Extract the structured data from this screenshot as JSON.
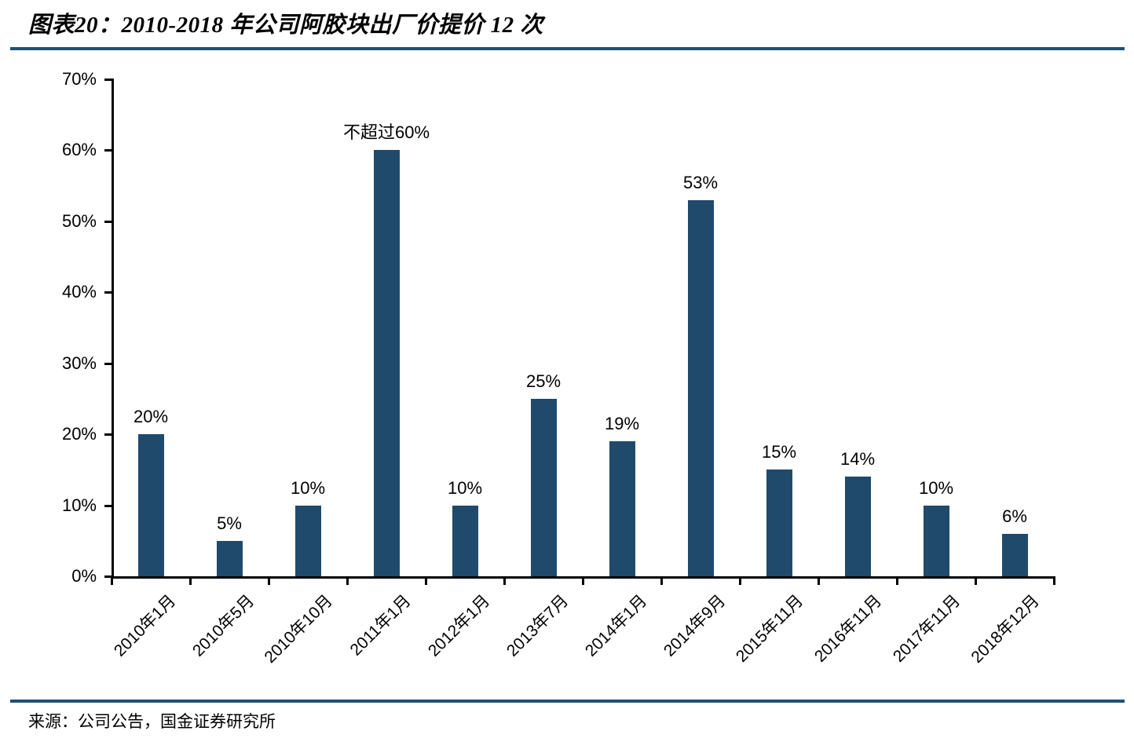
{
  "page": {
    "title": "图表20：2010-2018 年公司阿胶块出厂价提价 12 次",
    "source": "来源：公司公告，国金证券研究所"
  },
  "colors": {
    "bar": "#204A6C",
    "rule": "#1E5073",
    "axis": "#000000",
    "label_text": "#000000"
  },
  "chart_data": {
    "type": "bar",
    "title": "图表20：2010-2018 年公司阿胶块出厂价提价 12 次",
    "categories": [
      "2010年1月",
      "2010年5月",
      "2010年10月",
      "2011年1月",
      "2012年1月",
      "2013年7月",
      "2014年1月",
      "2014年9月",
      "2015年11月",
      "2016年11月",
      "2017年11月",
      "2018年12月"
    ],
    "values": [
      20,
      5,
      10,
      60,
      10,
      25,
      19,
      53,
      15,
      14,
      10,
      6
    ],
    "bar_labels": [
      "20%",
      "5%",
      "10%",
      "不超过60%",
      "10%",
      "25%",
      "19%",
      "53%",
      "15%",
      "14%",
      "10%",
      "6%"
    ],
    "xlabel": "",
    "ylabel": "",
    "ylim": [
      0,
      70
    ],
    "yticks": [
      0,
      10,
      20,
      30,
      40,
      50,
      60,
      70
    ],
    "ytick_labels": [
      "0%",
      "10%",
      "20%",
      "30%",
      "40%",
      "50%",
      "60%",
      "70%"
    ],
    "grid": false,
    "legend": false,
    "source": "来源：公司公告，国金证券研究所"
  }
}
